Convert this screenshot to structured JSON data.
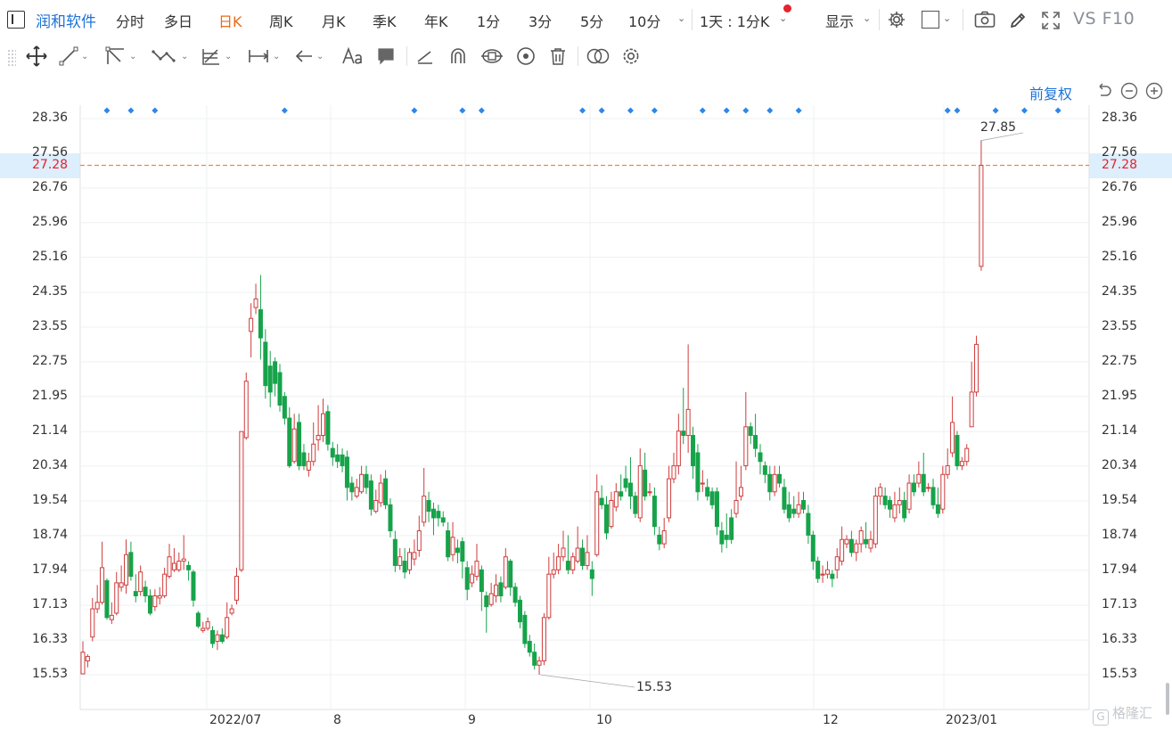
{
  "stock_name": "润和软件",
  "period_tabs": [
    "分时",
    "多日",
    "日K",
    "周K",
    "月K",
    "季K",
    "年K",
    "1分",
    "3分",
    "5分",
    "10分"
  ],
  "active_tab": "日K",
  "interval_select": "1天 : 1分K",
  "display_label": "显示",
  "vs_label": "VS",
  "f10_label": "F10",
  "adjust_label": "前复权",
  "y_ticks": [
    "28.36",
    "27.56",
    "26.76",
    "25.96",
    "25.16",
    "24.35",
    "23.55",
    "22.75",
    "21.95",
    "21.14",
    "20.34",
    "19.54",
    "18.74",
    "17.94",
    "17.13",
    "16.33",
    "15.53"
  ],
  "current_price": "27.28",
  "max_label": "27.85",
  "min_label": "15.53",
  "x_labels": [
    "2022/07",
    "8",
    "9",
    "10",
    "12",
    "2023/01"
  ],
  "watermark": "格隆汇",
  "colors": {
    "up": "#d03c3c",
    "down": "#16a34a",
    "accent": "#1e73d8",
    "price_line": "#e8894a",
    "price_text": "#e5232d",
    "active_tab": "#e96a19",
    "event_marker": "#2f86e8"
  },
  "icons": {
    "sidebar": "sidebar-toggle-icon",
    "gear": "gear-icon",
    "square": "square-icon",
    "camera": "camera-icon",
    "pencil": "pencil-icon",
    "fullscreen": "fullscreen-icon",
    "undo": "undo-icon",
    "zoom_out": "zoom-out-icon",
    "zoom_in": "zoom-in-icon"
  },
  "chart_data": {
    "type": "candlestick",
    "y_range": [
      15.53,
      28.36
    ],
    "ohlc": [
      [
        15.55,
        16.05,
        15.55,
        16.3
      ],
      [
        15.85,
        15.95,
        15.7,
        16.0
      ],
      [
        16.4,
        17.05,
        16.3,
        17.3
      ],
      [
        17.05,
        17.2,
        16.95,
        17.6
      ],
      [
        17.2,
        18.0,
        17.15,
        18.6
      ],
      [
        17.7,
        16.85,
        16.8,
        17.75
      ],
      [
        16.8,
        16.9,
        16.7,
        17.2
      ],
      [
        16.95,
        17.65,
        16.9,
        17.9
      ],
      [
        17.55,
        17.65,
        17.45,
        18.05
      ],
      [
        17.6,
        18.3,
        17.4,
        18.65
      ],
      [
        18.35,
        17.8,
        17.7,
        18.6
      ],
      [
        17.45,
        17.35,
        17.2,
        17.85
      ],
      [
        17.45,
        17.9,
        17.35,
        18.05
      ],
      [
        17.55,
        17.35,
        17.2,
        17.7
      ],
      [
        17.35,
        16.95,
        16.9,
        17.5
      ],
      [
        17.1,
        17.35,
        17.0,
        17.5
      ],
      [
        17.3,
        17.35,
        17.15,
        17.55
      ],
      [
        17.35,
        17.85,
        17.3,
        18.0
      ],
      [
        17.8,
        18.25,
        17.75,
        18.55
      ],
      [
        17.95,
        18.1,
        17.9,
        18.45
      ],
      [
        17.95,
        18.15,
        17.9,
        18.35
      ],
      [
        18.15,
        18.2,
        17.95,
        18.75
      ],
      [
        18.05,
        17.95,
        17.7,
        18.15
      ],
      [
        17.9,
        17.25,
        17.1,
        17.95
      ],
      [
        16.95,
        16.65,
        16.6,
        17.0
      ],
      [
        16.55,
        16.6,
        16.5,
        16.75
      ],
      [
        16.6,
        16.75,
        16.55,
        16.85
      ],
      [
        16.55,
        16.25,
        16.15,
        16.65
      ],
      [
        16.3,
        16.45,
        16.1,
        16.55
      ],
      [
        16.45,
        16.3,
        16.25,
        16.6
      ],
      [
        16.4,
        16.85,
        16.35,
        17.2
      ],
      [
        16.95,
        17.05,
        16.9,
        17.15
      ],
      [
        17.25,
        17.8,
        17.15,
        18.0
      ],
      [
        17.95,
        21.14,
        17.9,
        21.14
      ],
      [
        21.0,
        22.3,
        20.95,
        22.5
      ],
      [
        23.45,
        23.75,
        22.85,
        24.1
      ],
      [
        24.0,
        24.2,
        23.85,
        24.55
      ],
      [
        23.95,
        23.3,
        22.8,
        24.75
      ],
      [
        23.2,
        22.2,
        21.9,
        23.5
      ],
      [
        22.65,
        22.05,
        21.7,
        23.0
      ],
      [
        22.75,
        22.25,
        21.95,
        22.85
      ],
      [
        22.5,
        21.75,
        21.6,
        22.7
      ],
      [
        21.95,
        21.45,
        21.3,
        22.05
      ],
      [
        21.45,
        20.35,
        20.3,
        21.7
      ],
      [
        20.45,
        21.2,
        20.4,
        21.55
      ],
      [
        21.35,
        20.35,
        20.25,
        21.55
      ],
      [
        20.65,
        20.35,
        20.25,
        20.85
      ],
      [
        20.25,
        20.45,
        20.1,
        20.65
      ],
      [
        20.45,
        20.85,
        20.35,
        21.35
      ],
      [
        20.95,
        21.05,
        20.7,
        21.75
      ],
      [
        21.05,
        21.55,
        20.9,
        21.9
      ],
      [
        21.6,
        20.85,
        20.7,
        21.75
      ],
      [
        20.75,
        20.55,
        20.35,
        20.9
      ],
      [
        20.6,
        20.45,
        20.3,
        20.85
      ],
      [
        20.6,
        20.35,
        20.2,
        20.75
      ],
      [
        20.55,
        19.85,
        19.55,
        20.7
      ],
      [
        19.95,
        19.75,
        19.55,
        20.1
      ],
      [
        19.65,
        19.85,
        19.6,
        20.05
      ],
      [
        19.75,
        20.15,
        19.7,
        20.35
      ],
      [
        20.15,
        19.85,
        19.7,
        20.35
      ],
      [
        20.0,
        19.35,
        19.2,
        20.15
      ],
      [
        19.3,
        19.55,
        19.25,
        19.8
      ],
      [
        19.5,
        19.95,
        19.4,
        20.15
      ],
      [
        20.05,
        19.45,
        19.35,
        20.25
      ],
      [
        19.45,
        18.85,
        18.7,
        19.6
      ],
      [
        18.65,
        18.05,
        17.9,
        18.85
      ],
      [
        18.05,
        18.25,
        17.95,
        18.45
      ],
      [
        18.15,
        17.9,
        17.75,
        18.45
      ],
      [
        17.95,
        18.35,
        17.85,
        18.45
      ],
      [
        18.2,
        18.35,
        18.05,
        18.65
      ],
      [
        18.4,
        18.85,
        18.25,
        19.2
      ],
      [
        19.05,
        19.65,
        18.95,
        20.3
      ],
      [
        19.55,
        19.3,
        19.05,
        19.75
      ],
      [
        19.35,
        19.15,
        18.75,
        19.5
      ],
      [
        19.3,
        19.15,
        18.95,
        19.45
      ],
      [
        19.15,
        19.05,
        18.95,
        19.3
      ],
      [
        18.85,
        18.25,
        18.15,
        19.05
      ],
      [
        18.3,
        18.7,
        18.15,
        19.05
      ],
      [
        18.45,
        18.35,
        18.1,
        18.65
      ],
      [
        18.6,
        18.15,
        17.75,
        18.7
      ],
      [
        18.0,
        17.5,
        17.25,
        18.15
      ],
      [
        17.65,
        17.85,
        17.55,
        18.05
      ],
      [
        17.8,
        18.15,
        17.7,
        18.55
      ],
      [
        17.95,
        17.45,
        17.0,
        18.05
      ],
      [
        17.35,
        17.1,
        16.5,
        17.45
      ],
      [
        17.15,
        17.4,
        17.1,
        17.65
      ],
      [
        17.35,
        17.6,
        17.2,
        17.85
      ],
      [
        17.65,
        17.35,
        17.2,
        17.8
      ],
      [
        17.55,
        18.25,
        17.5,
        18.45
      ],
      [
        18.15,
        17.55,
        17.35,
        18.2
      ],
      [
        17.55,
        17.2,
        17.1,
        17.65
      ],
      [
        17.25,
        16.75,
        16.6,
        17.35
      ],
      [
        16.9,
        16.25,
        16.15,
        17.0
      ],
      [
        16.3,
        16.05,
        15.95,
        16.45
      ],
      [
        16.05,
        15.75,
        15.65,
        16.25
      ],
      [
        15.75,
        15.85,
        15.53,
        15.95
      ],
      [
        15.85,
        16.85,
        15.75,
        16.95
      ],
      [
        16.85,
        17.85,
        16.8,
        18.25
      ],
      [
        17.85,
        17.95,
        17.75,
        18.35
      ],
      [
        17.95,
        18.25,
        17.85,
        18.55
      ],
      [
        18.25,
        18.45,
        18.15,
        18.85
      ],
      [
        18.15,
        17.95,
        17.85,
        18.75
      ],
      [
        17.95,
        18.25,
        17.85,
        18.35
      ],
      [
        18.15,
        18.45,
        18.1,
        18.95
      ],
      [
        18.45,
        18.05,
        17.95,
        18.65
      ],
      [
        18.05,
        18.35,
        17.95,
        18.75
      ],
      [
        17.95,
        17.75,
        17.35,
        18.15
      ],
      [
        18.3,
        19.75,
        18.25,
        20.15
      ],
      [
        19.6,
        19.45,
        19.35,
        19.9
      ],
      [
        19.45,
        18.8,
        18.65,
        19.65
      ],
      [
        18.95,
        19.55,
        18.9,
        19.75
      ],
      [
        19.4,
        19.75,
        19.3,
        19.95
      ],
      [
        19.75,
        19.65,
        19.55,
        20.15
      ],
      [
        20.05,
        19.85,
        19.75,
        20.35
      ],
      [
        19.95,
        19.65,
        19.35,
        20.55
      ],
      [
        19.65,
        19.25,
        19.15,
        19.75
      ],
      [
        19.15,
        20.35,
        19.05,
        20.75
      ],
      [
        20.25,
        19.65,
        19.55,
        20.65
      ],
      [
        19.75,
        19.75,
        19.65,
        19.95
      ],
      [
        19.65,
        18.95,
        18.75,
        19.85
      ],
      [
        18.75,
        18.55,
        18.4,
        18.95
      ],
      [
        18.55,
        18.85,
        18.45,
        19.15
      ],
      [
        19.15,
        20.05,
        19.05,
        20.35
      ],
      [
        20.05,
        20.35,
        19.95,
        20.65
      ],
      [
        20.35,
        21.15,
        20.15,
        21.55
      ],
      [
        21.15,
        21.05,
        20.85,
        22.15
      ],
      [
        21.05,
        21.65,
        20.65,
        23.15
      ],
      [
        21.05,
        20.35,
        20.05,
        21.25
      ],
      [
        20.65,
        19.75,
        19.55,
        20.85
      ],
      [
        19.95,
        19.95,
        19.75,
        20.25
      ],
      [
        19.85,
        19.65,
        19.55,
        20.05
      ],
      [
        19.75,
        19.45,
        19.35,
        19.85
      ],
      [
        19.75,
        18.95,
        18.75,
        19.85
      ],
      [
        18.85,
        18.55,
        18.35,
        19.05
      ],
      [
        18.75,
        18.65,
        18.45,
        19.25
      ],
      [
        19.15,
        18.65,
        18.55,
        19.35
      ],
      [
        19.25,
        19.55,
        19.15,
        20.45
      ],
      [
        19.65,
        19.85,
        19.55,
        20.35
      ],
      [
        20.35,
        21.25,
        20.25,
        22.05
      ],
      [
        21.25,
        21.05,
        20.85,
        21.35
      ],
      [
        21.05,
        20.75,
        20.55,
        21.55
      ],
      [
        20.65,
        20.45,
        20.15,
        20.85
      ],
      [
        20.35,
        20.15,
        19.95,
        20.45
      ],
      [
        20.15,
        19.75,
        19.55,
        20.35
      ],
      [
        19.75,
        20.15,
        19.65,
        20.35
      ],
      [
        20.15,
        19.95,
        19.85,
        20.35
      ],
      [
        19.85,
        19.35,
        19.25,
        20.05
      ],
      [
        19.45,
        19.15,
        19.05,
        19.75
      ],
      [
        19.35,
        19.25,
        19.15,
        19.65
      ],
      [
        19.25,
        19.45,
        19.15,
        19.75
      ],
      [
        19.55,
        19.35,
        19.25,
        19.75
      ],
      [
        19.25,
        18.75,
        18.55,
        19.45
      ],
      [
        18.75,
        18.15,
        17.95,
        18.85
      ],
      [
        18.15,
        17.75,
        17.65,
        18.25
      ],
      [
        17.85,
        17.85,
        17.65,
        18.05
      ],
      [
        17.85,
        17.95,
        17.75,
        18.15
      ],
      [
        17.85,
        17.75,
        17.55,
        17.95
      ],
      [
        17.95,
        18.25,
        17.75,
        18.45
      ],
      [
        18.15,
        18.65,
        18.05,
        18.95
      ],
      [
        18.55,
        18.65,
        18.45,
        18.75
      ],
      [
        18.65,
        18.35,
        18.25,
        18.85
      ],
      [
        18.35,
        18.55,
        18.15,
        18.65
      ],
      [
        18.55,
        18.85,
        18.35,
        18.95
      ],
      [
        18.65,
        18.55,
        18.45,
        19.05
      ],
      [
        18.45,
        18.65,
        18.35,
        18.85
      ],
      [
        18.55,
        19.65,
        18.45,
        19.85
      ],
      [
        19.65,
        19.85,
        19.45,
        19.95
      ],
      [
        19.65,
        19.45,
        19.35,
        19.85
      ],
      [
        19.55,
        19.35,
        19.15,
        19.65
      ],
      [
        19.15,
        19.45,
        19.05,
        19.75
      ],
      [
        19.45,
        19.55,
        19.25,
        19.85
      ],
      [
        19.55,
        19.15,
        19.05,
        19.75
      ],
      [
        19.35,
        19.95,
        19.25,
        20.15
      ],
      [
        19.95,
        19.75,
        19.65,
        20.15
      ],
      [
        19.95,
        20.15,
        19.85,
        20.45
      ],
      [
        20.15,
        19.75,
        19.65,
        20.65
      ],
      [
        19.85,
        19.85,
        19.75,
        19.95
      ],
      [
        19.85,
        19.45,
        19.35,
        20.05
      ],
      [
        19.45,
        19.25,
        19.15,
        19.85
      ],
      [
        19.35,
        20.15,
        19.25,
        20.35
      ],
      [
        20.15,
        20.35,
        20.05,
        20.75
      ],
      [
        20.65,
        21.35,
        20.55,
        21.95
      ],
      [
        21.05,
        20.35,
        20.25,
        21.15
      ],
      [
        20.35,
        20.45,
        20.25,
        20.55
      ],
      [
        20.45,
        20.75,
        20.35,
        20.85
      ],
      [
        21.25,
        22.05,
        21.25,
        22.75
      ],
      [
        22.05,
        23.15,
        21.95,
        23.35
      ],
      [
        24.95,
        27.28,
        24.85,
        27.85
      ]
    ],
    "event_markers": [
      5,
      10,
      15,
      42,
      69,
      79,
      83,
      104,
      108,
      114,
      119,
      129,
      134,
      138,
      143,
      149,
      180,
      182,
      190,
      196,
      203
    ]
  }
}
